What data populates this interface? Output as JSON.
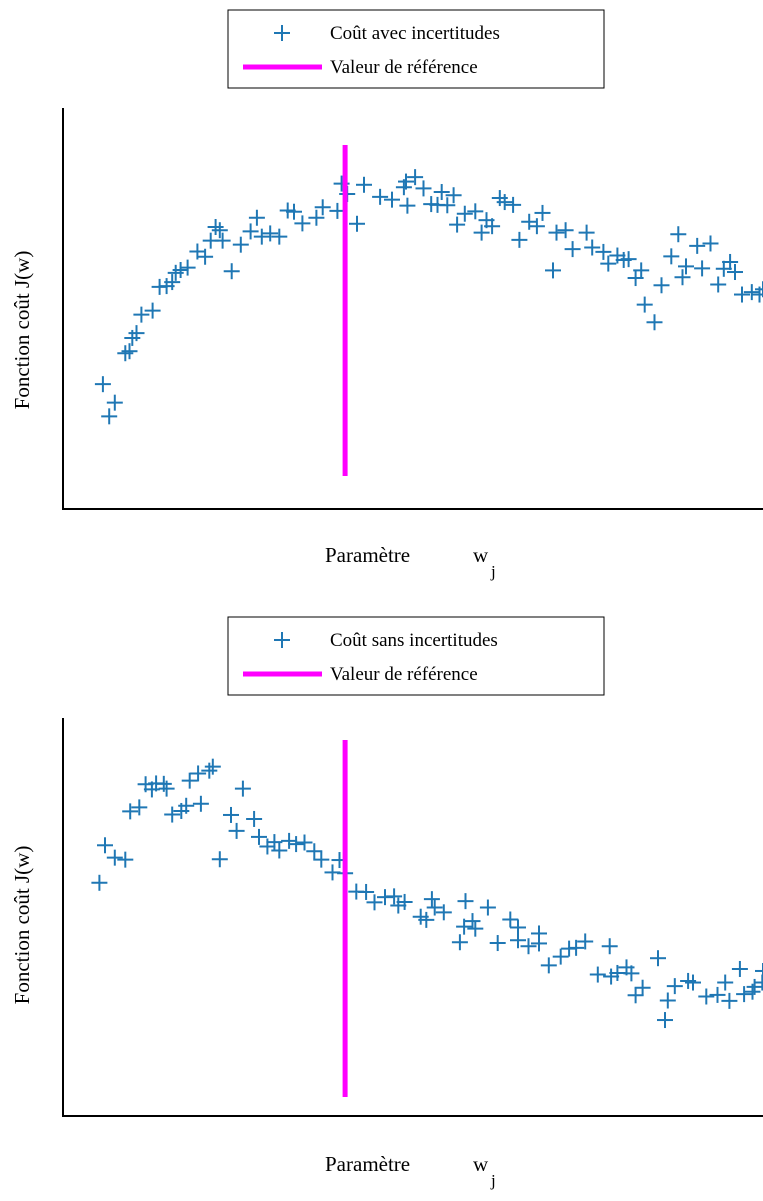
{
  "chart_data": [
    {
      "type": "scatter",
      "xlabel": "Paramètre",
      "xlabel_symbol": "w",
      "xlabel_subscript": "j",
      "ylabel": "Fonction coût J(w)",
      "xlim": [
        0,
        1
      ],
      "ylim": [
        0,
        1
      ],
      "legend_position": "top",
      "series": [
        {
          "name": "Coût avec incertitudes",
          "marker": "+",
          "color": "#1f77b4",
          "x": [
            0.057,
            0.066,
            0.074,
            0.089,
            0.095,
            0.099,
            0.105,
            0.112,
            0.128,
            0.138,
            0.148,
            0.156,
            0.161,
            0.168,
            0.178,
            0.192,
            0.203,
            0.211,
            0.218,
            0.224,
            0.228,
            0.241,
            0.254,
            0.268,
            0.277,
            0.284,
            0.296,
            0.309,
            0.321,
            0.33,
            0.342,
            0.362,
            0.371,
            0.392,
            0.398,
            0.406,
            0.42,
            0.43,
            0.453,
            0.47,
            0.487,
            0.49,
            0.492,
            0.503,
            0.515,
            0.526,
            0.535,
            0.541,
            0.549,
            0.558,
            0.563,
            0.574,
            0.589,
            0.598,
            0.605,
            0.613,
            0.624,
            0.631,
            0.643,
            0.652,
            0.666,
            0.677,
            0.685,
            0.7,
            0.705,
            0.718,
            0.728,
            0.748,
            0.756,
            0.772,
            0.779,
            0.792,
            0.801,
            0.808,
            0.818,
            0.826,
            0.831,
            0.845,
            0.855,
            0.869,
            0.879,
            0.885,
            0.89,
            0.906,
            0.913,
            0.925,
            0.936,
            0.944,
            0.953,
            0.96,
            0.97,
            0.984,
            0.995,
            1.0
          ],
          "y": [
            0.313,
            0.233,
            0.267,
            0.39,
            0.395,
            0.428,
            0.44,
            0.486,
            0.496,
            0.555,
            0.557,
            0.567,
            0.59,
            0.597,
            0.603,
            0.643,
            0.63,
            0.67,
            0.704,
            0.696,
            0.67,
            0.594,
            0.66,
            0.693,
            0.727,
            0.68,
            0.688,
            0.68,
            0.745,
            0.742,
            0.713,
            0.727,
            0.753,
            0.744,
            0.812,
            0.786,
            0.712,
            0.809,
            0.779,
            0.772,
            0.803,
            0.817,
            0.757,
            0.828,
            0.8,
            0.761,
            0.759,
            0.791,
            0.758,
            0.783,
            0.71,
            0.737,
            0.743,
            0.69,
            0.721,
            0.706,
            0.776,
            0.766,
            0.759,
            0.672,
            0.717,
            0.706,
            0.739,
            0.596,
            0.69,
            0.696,
            0.649,
            0.69,
            0.653,
            0.642,
            0.613,
            0.633,
            0.622,
            0.624,
            0.577,
            0.596,
            0.511,
            0.467,
            0.559,
            0.631,
            0.686,
            0.579,
            0.606,
            0.657,
            0.601,
            0.663,
            0.561,
            0.6,
            0.617,
            0.592,
            0.536,
            0.542,
            0.536,
            0.549
          ]
        },
        {
          "name": "Valeur de référence",
          "type": "vline",
          "x": 0.403,
          "color": "#ff00ff"
        }
      ]
    },
    {
      "type": "scatter",
      "xlabel": "Paramètre",
      "xlabel_symbol": "w",
      "xlabel_subscript": "j",
      "ylabel": "Fonction coût J(w)",
      "xlim": [
        0,
        1
      ],
      "ylim": [
        0,
        1
      ],
      "legend_position": "top",
      "series": [
        {
          "name": "Coût sans incertitudes",
          "marker": "+",
          "color": "#1f77b4",
          "x": [
            0.052,
            0.06,
            0.074,
            0.089,
            0.096,
            0.109,
            0.118,
            0.127,
            0.133,
            0.144,
            0.148,
            0.156,
            0.169,
            0.176,
            0.181,
            0.193,
            0.197,
            0.209,
            0.214,
            0.224,
            0.24,
            0.248,
            0.257,
            0.273,
            0.28,
            0.292,
            0.302,
            0.309,
            0.323,
            0.333,
            0.345,
            0.359,
            0.369,
            0.385,
            0.395,
            0.403,
            0.419,
            0.433,
            0.445,
            0.46,
            0.473,
            0.479,
            0.488,
            0.511,
            0.519,
            0.527,
            0.531,
            0.544,
            0.567,
            0.573,
            0.575,
            0.585,
            0.589,
            0.607,
            0.621,
            0.639,
            0.65,
            0.65,
            0.665,
            0.68,
            0.68,
            0.694,
            0.711,
            0.723,
            0.733,
            0.746,
            0.764,
            0.781,
            0.783,
            0.792,
            0.805,
            0.812,
            0.818,
            0.828,
            0.85,
            0.86,
            0.864,
            0.874,
            0.893,
            0.9,
            0.919,
            0.935,
            0.946,
            0.952,
            0.967,
            0.973,
            0.985,
            0.988,
            0.999,
            1.0
          ],
          "y": [
            0.587,
            0.681,
            0.65,
            0.645,
            0.766,
            0.776,
            0.834,
            0.821,
            0.836,
            0.835,
            0.823,
            0.758,
            0.767,
            0.78,
            0.843,
            0.861,
            0.785,
            0.868,
            0.878,
            0.646,
            0.757,
            0.717,
            0.823,
            0.747,
            0.702,
            0.678,
            0.689,
            0.668,
            0.692,
            0.684,
            0.688,
            0.666,
            0.645,
            0.613,
            0.644,
            0.611,
            0.565,
            0.564,
            0.538,
            0.551,
            0.553,
            0.53,
            0.539,
            0.502,
            0.494,
            0.546,
            0.525,
            0.513,
            0.438,
            0.477,
            0.541,
            0.491,
            0.472,
            0.525,
            0.436,
            0.495,
            0.475,
            0.443,
            0.428,
            0.435,
            0.46,
            0.38,
            0.402,
            0.422,
            0.424,
            0.44,
            0.357,
            0.428,
            0.352,
            0.361,
            0.375,
            0.36,
            0.305,
            0.324,
            0.398,
            0.243,
            0.292,
            0.328,
            0.341,
            0.337,
            0.302,
            0.306,
            0.337,
            0.291,
            0.371,
            0.308,
            0.314,
            0.326,
            0.337,
            0.366
          ]
        },
        {
          "name": "Valeur de référence",
          "type": "vline",
          "x": 0.403,
          "color": "#ff00ff"
        }
      ]
    }
  ]
}
